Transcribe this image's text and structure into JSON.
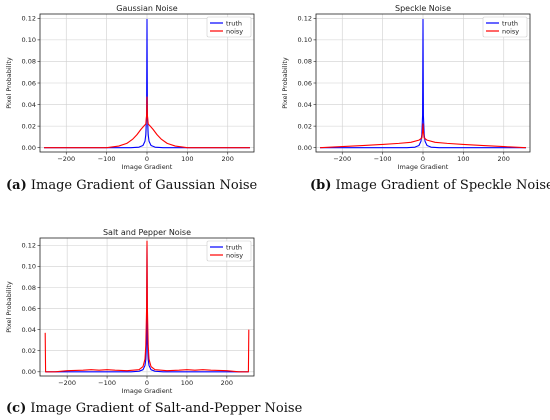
{
  "chart_data": [
    {
      "type": "line",
      "title": "Gaussian Noise",
      "xlabel": "Image Gradient",
      "ylabel": "Pixel Probability",
      "xlim": [
        -265,
        265
      ],
      "ylim": [
        -0.004,
        0.124
      ],
      "xticks": [
        -200,
        -100,
        0,
        100,
        200
      ],
      "xtick_labels": [
        "−200",
        "−100",
        "0",
        "100",
        "200"
      ],
      "yticks": [
        0.0,
        0.02,
        0.04,
        0.06,
        0.08,
        0.1,
        0.12
      ],
      "ytick_labels": [
        "0.00",
        "0.02",
        "0.04",
        "0.06",
        "0.08",
        "0.10",
        "0.12"
      ],
      "grid": true,
      "legend": "top-right",
      "caption_label": "(a)",
      "caption_text": "Image Gradient of Gaussian Noise",
      "series": [
        {
          "name": "truth",
          "color": "#0000ff",
          "points": [
            [
              -255,
              0.0
            ],
            [
              -40,
              0.0
            ],
            [
              -20,
              0.0005
            ],
            [
              -10,
              0.002
            ],
            [
              -5,
              0.006
            ],
            [
              -3,
              0.012
            ],
            [
              -1,
              0.03
            ],
            [
              0,
              0.119
            ],
            [
              1,
              0.03
            ],
            [
              3,
              0.012
            ],
            [
              5,
              0.006
            ],
            [
              10,
              0.002
            ],
            [
              20,
              0.0005
            ],
            [
              40,
              0.0
            ],
            [
              255,
              0.0
            ]
          ]
        },
        {
          "name": "noisy",
          "color": "#ff0000",
          "points": [
            [
              -255,
              0.0
            ],
            [
              -100,
              0.0
            ],
            [
              -70,
              0.0015
            ],
            [
              -50,
              0.004
            ],
            [
              -35,
              0.008
            ],
            [
              -25,
              0.012
            ],
            [
              -15,
              0.017
            ],
            [
              -8,
              0.02
            ],
            [
              -3,
              0.022
            ],
            [
              -1,
              0.03
            ],
            [
              0,
              0.047
            ],
            [
              1,
              0.03
            ],
            [
              3,
              0.022
            ],
            [
              8,
              0.02
            ],
            [
              15,
              0.017
            ],
            [
              25,
              0.012
            ],
            [
              35,
              0.008
            ],
            [
              50,
              0.004
            ],
            [
              70,
              0.0015
            ],
            [
              100,
              0.0
            ],
            [
              255,
              0.0
            ]
          ]
        }
      ]
    },
    {
      "type": "line",
      "title": "Speckle Noise",
      "xlabel": "Image Gradient",
      "ylabel": "Pixel Probability",
      "xlim": [
        -265,
        265
      ],
      "ylim": [
        -0.004,
        0.124
      ],
      "xticks": [
        -200,
        -100,
        0,
        100,
        200
      ],
      "xtick_labels": [
        "−200",
        "−100",
        "0",
        "100",
        "200"
      ],
      "yticks": [
        0.0,
        0.02,
        0.04,
        0.06,
        0.08,
        0.1,
        0.12
      ],
      "ytick_labels": [
        "0.00",
        "0.02",
        "0.04",
        "0.06",
        "0.08",
        "0.10",
        "0.12"
      ],
      "grid": true,
      "legend": "top-right",
      "caption_label": "(b)",
      "caption_text": "Image Gradient of Speckle Noise",
      "series": [
        {
          "name": "truth",
          "color": "#0000ff",
          "points": [
            [
              -255,
              0.0
            ],
            [
              -40,
              0.0
            ],
            [
              -20,
              0.0005
            ],
            [
              -10,
              0.002
            ],
            [
              -5,
              0.006
            ],
            [
              -3,
              0.012
            ],
            [
              -1,
              0.03
            ],
            [
              0,
              0.119
            ],
            [
              1,
              0.03
            ],
            [
              3,
              0.012
            ],
            [
              5,
              0.006
            ],
            [
              10,
              0.002
            ],
            [
              20,
              0.0005
            ],
            [
              40,
              0.0
            ],
            [
              255,
              0.0
            ]
          ]
        },
        {
          "name": "noisy",
          "color": "#ff0000",
          "points": [
            [
              -255,
              0.0
            ],
            [
              -200,
              0.001
            ],
            [
              -150,
              0.002
            ],
            [
              -100,
              0.003
            ],
            [
              -60,
              0.004
            ],
            [
              -30,
              0.005
            ],
            [
              -10,
              0.007
            ],
            [
              -3,
              0.009
            ],
            [
              -1,
              0.015
            ],
            [
              0,
              0.022
            ],
            [
              1,
              0.015
            ],
            [
              3,
              0.009
            ],
            [
              10,
              0.007
            ],
            [
              30,
              0.005
            ],
            [
              60,
              0.004
            ],
            [
              100,
              0.003
            ],
            [
              150,
              0.002
            ],
            [
              200,
              0.001
            ],
            [
              255,
              0.0
            ]
          ]
        }
      ]
    },
    {
      "type": "line",
      "title": "Salt and Pepper Noise",
      "xlabel": "Image Gradient",
      "ylabel": "Pixel Probability",
      "xlim": [
        -268,
        268
      ],
      "ylim": [
        -0.004,
        0.127
      ],
      "xticks": [
        -200,
        -100,
        0,
        100,
        200
      ],
      "xtick_labels": [
        "−200",
        "−100",
        "0",
        "100",
        "200"
      ],
      "yticks": [
        0.0,
        0.02,
        0.04,
        0.06,
        0.08,
        0.1,
        0.12
      ],
      "ytick_labels": [
        "0.00",
        "0.02",
        "0.04",
        "0.06",
        "0.08",
        "0.10",
        "0.12"
      ],
      "grid": true,
      "legend": "top-right",
      "caption_label": "(c)",
      "caption_text": "Image Gradient of Salt-and-Pepper Noise",
      "series": [
        {
          "name": "truth",
          "color": "#0000ff",
          "points": [
            [
              -255,
              0.0
            ],
            [
              -40,
              0.0
            ],
            [
              -20,
              0.0005
            ],
            [
              -10,
              0.002
            ],
            [
              -5,
              0.006
            ],
            [
              -3,
              0.012
            ],
            [
              -1,
              0.03
            ],
            [
              0,
              0.119
            ],
            [
              1,
              0.03
            ],
            [
              3,
              0.012
            ],
            [
              5,
              0.006
            ],
            [
              10,
              0.002
            ],
            [
              20,
              0.0005
            ],
            [
              40,
              0.0
            ],
            [
              255,
              0.0
            ]
          ]
        },
        {
          "name": "noisy",
          "color": "#ff0000",
          "points": [
            [
              -255,
              0.037
            ],
            [
              -254,
              0.0
            ],
            [
              -230,
              0.0
            ],
            [
              -200,
              0.001
            ],
            [
              -160,
              0.0015
            ],
            [
              -140,
              0.002
            ],
            [
              -120,
              0.0015
            ],
            [
              -100,
              0.002
            ],
            [
              -80,
              0.0015
            ],
            [
              -50,
              0.001
            ],
            [
              -20,
              0.002
            ],
            [
              -10,
              0.005
            ],
            [
              -5,
              0.012
            ],
            [
              -3,
              0.025
            ],
            [
              -1,
              0.06
            ],
            [
              0,
              0.124
            ],
            [
              1,
              0.06
            ],
            [
              3,
              0.025
            ],
            [
              5,
              0.012
            ],
            [
              10,
              0.005
            ],
            [
              20,
              0.002
            ],
            [
              50,
              0.001
            ],
            [
              80,
              0.0015
            ],
            [
              100,
              0.002
            ],
            [
              120,
              0.0015
            ],
            [
              140,
              0.002
            ],
            [
              160,
              0.0015
            ],
            [
              200,
              0.001
            ],
            [
              230,
              0.0
            ],
            [
              254,
              0.0
            ],
            [
              255,
              0.04
            ]
          ]
        }
      ]
    }
  ]
}
